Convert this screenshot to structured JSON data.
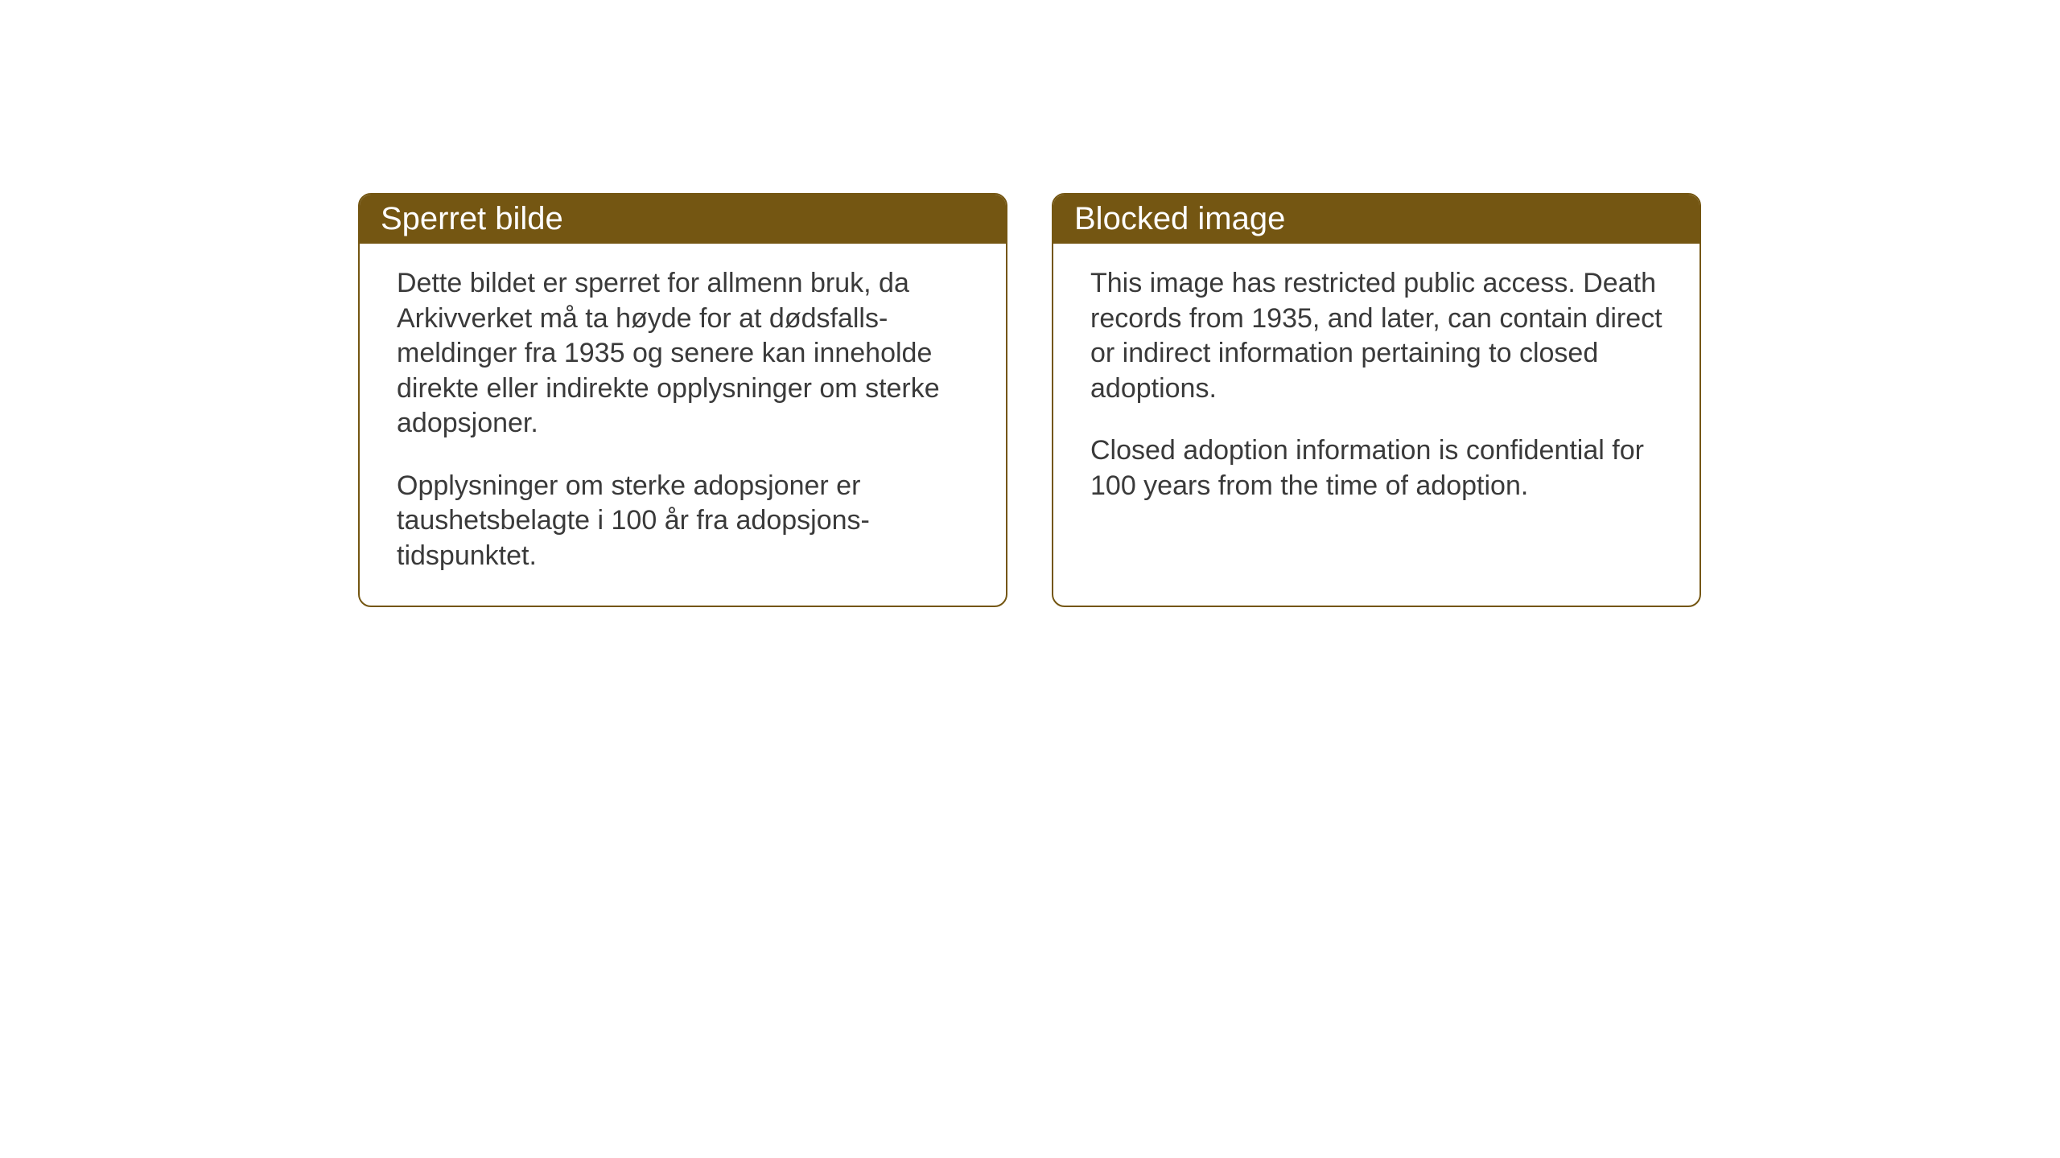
{
  "notices": {
    "norwegian": {
      "title": "Sperret bilde",
      "paragraph1": "Dette bildet er sperret for allmenn bruk, da Arkivverket må ta høyde for at dødsfalls-meldinger fra 1935 og senere kan inneholde direkte eller indirekte opplysninger om sterke adopsjoner.",
      "paragraph2": "Opplysninger om sterke adopsjoner er taushetsbelagte i 100 år fra adopsjons-tidspunktet."
    },
    "english": {
      "title": "Blocked image",
      "paragraph1": "This image has restricted public access. Death records from 1935, and later, can contain direct or indirect information pertaining to closed adoptions.",
      "paragraph2": "Closed adoption information is confidential for 100 years from the time of adoption."
    }
  },
  "styling": {
    "header_bg_color": "#745612",
    "header_text_color": "#ffffff",
    "border_color": "#745612",
    "body_text_color": "#3a3a3a",
    "background_color": "#ffffff",
    "border_radius": 16,
    "title_fontsize": 40,
    "body_fontsize": 34
  }
}
